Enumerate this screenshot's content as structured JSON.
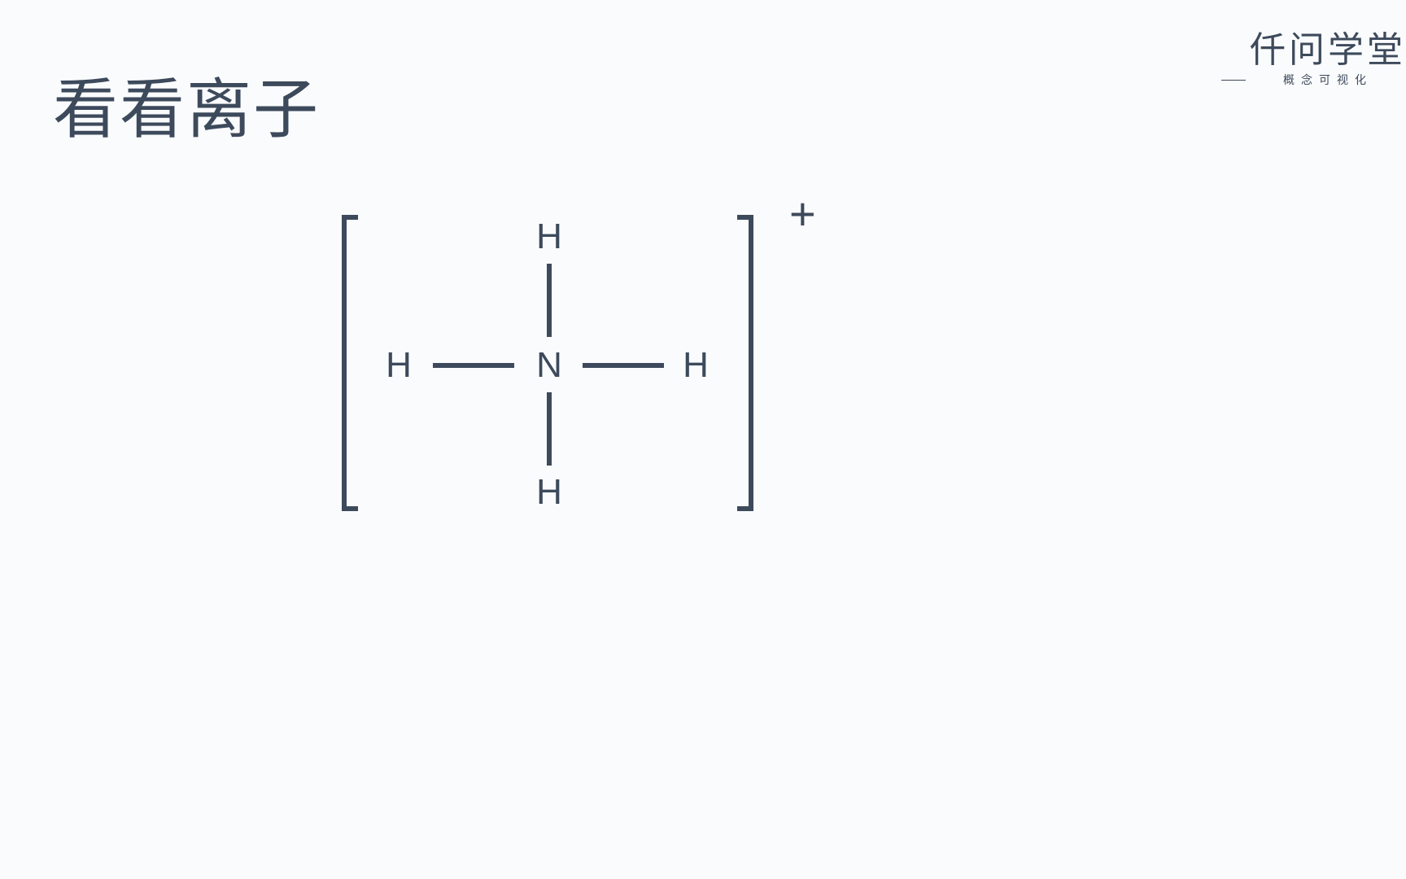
{
  "title": "看看离子",
  "watermark": {
    "main": "仟问学堂",
    "sub": "概念可视化"
  },
  "diagram": {
    "type": "chemical-structure",
    "name": "ammonium-ion",
    "charge": "+",
    "center_atom": "N",
    "peripheral_atoms": {
      "top": "H",
      "bottom": "H",
      "left": "H",
      "right": "H"
    },
    "bonds": [
      {
        "from": "center",
        "to": "top"
      },
      {
        "from": "center",
        "to": "bottom"
      },
      {
        "from": "center",
        "to": "left"
      },
      {
        "from": "center",
        "to": "right"
      }
    ],
    "colors": {
      "background": "#fafbfc",
      "stroke": "#3d4a5c",
      "text": "#3d4a5c"
    },
    "line_width": 6,
    "atom_fontsize": 44,
    "title_fontsize": 80,
    "bracket_height": 364,
    "bracket_notch_width": 20
  }
}
